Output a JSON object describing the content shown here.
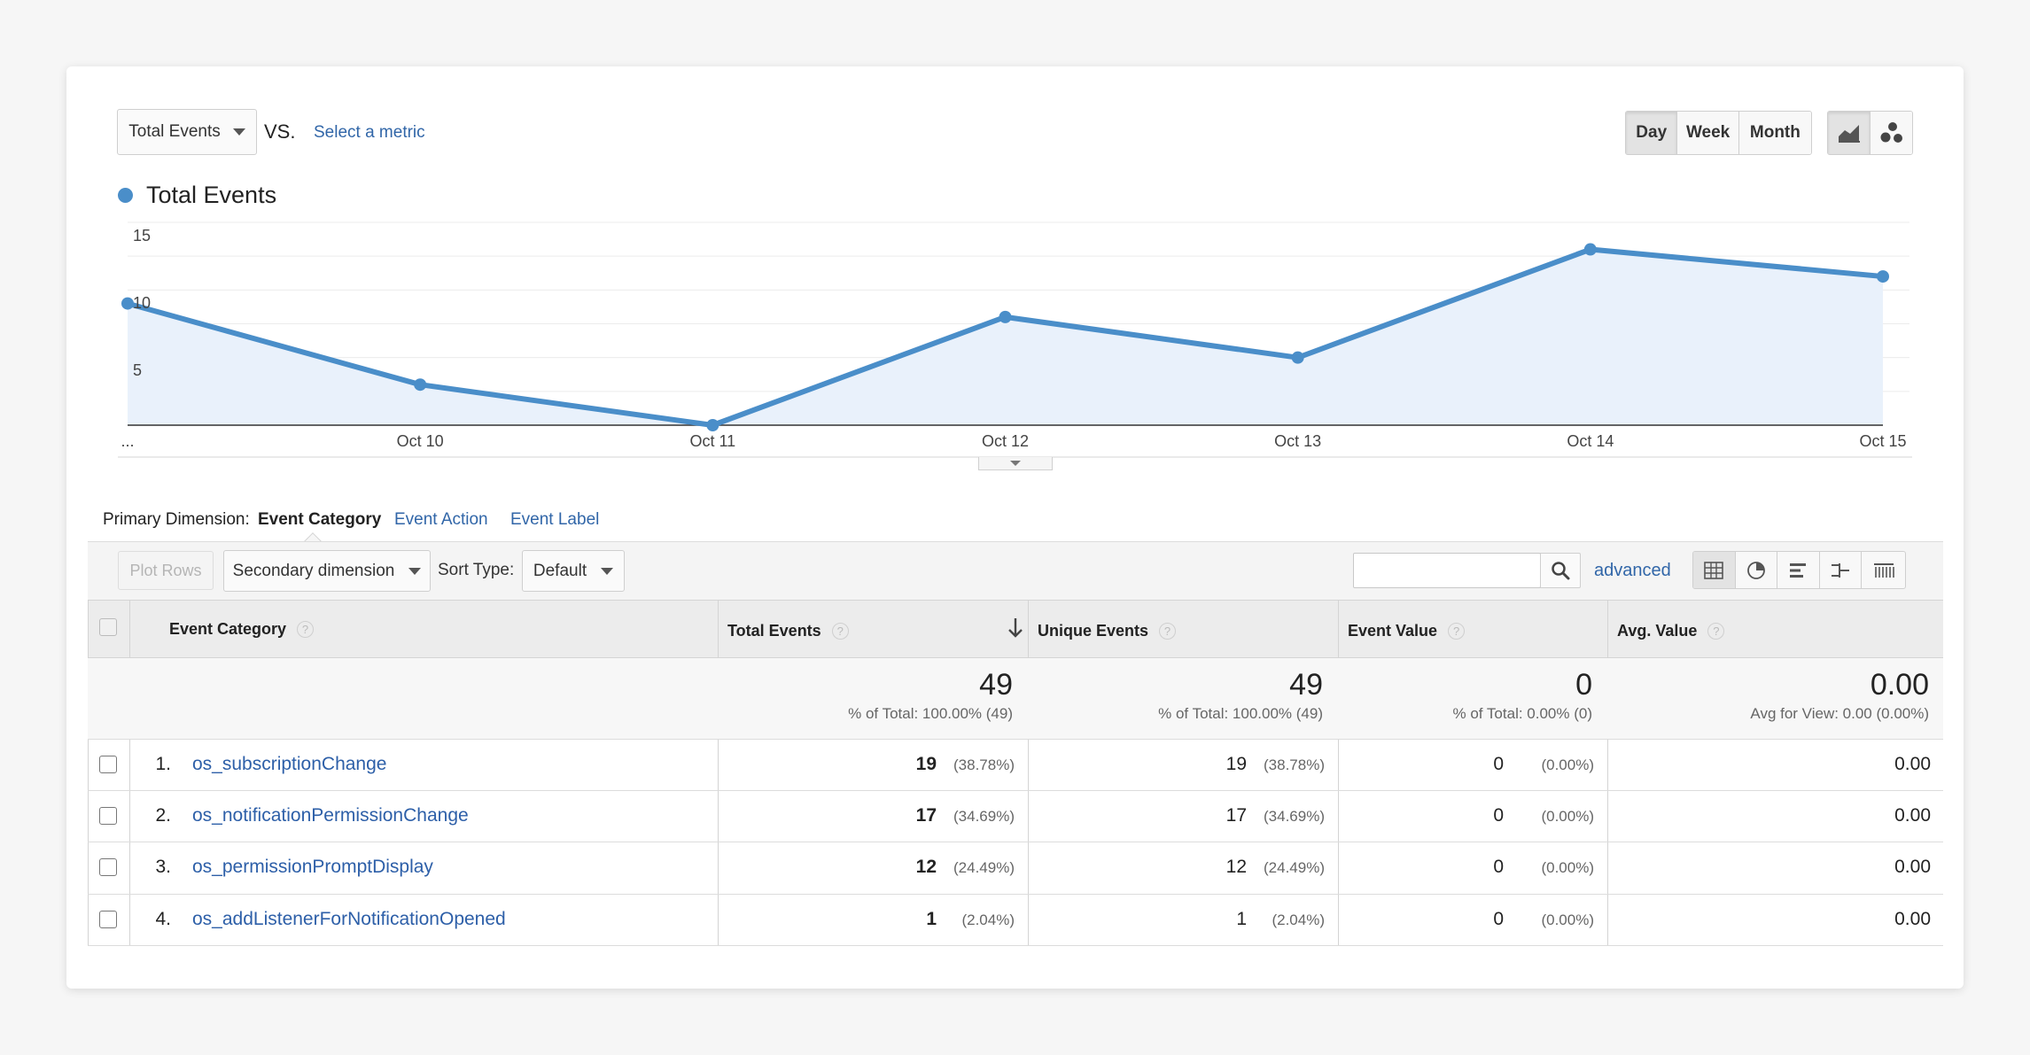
{
  "metric_selector": {
    "value": "Total Events",
    "vs_label": "VS.",
    "select_metric_label": "Select a metric"
  },
  "period_buttons": [
    "Day",
    "Week",
    "Month"
  ],
  "legend": {
    "label": "Total Events",
    "color": "#4a8ec9"
  },
  "chart_data": {
    "type": "line",
    "x": [
      "...",
      "Oct 10",
      "Oct 11",
      "Oct 12",
      "Oct 13",
      "Oct 14",
      "Oct 15"
    ],
    "series": [
      {
        "name": "Total Events",
        "values": [
          9,
          3,
          0,
          8,
          5,
          13,
          11
        ]
      }
    ],
    "ylim": [
      0,
      15
    ],
    "yticks": [
      5,
      10,
      15
    ],
    "title": "",
    "xlabel": "",
    "ylabel": ""
  },
  "primary_dimension": {
    "label": "Primary Dimension:",
    "active": "Event Category",
    "options": [
      "Event Action",
      "Event Label"
    ]
  },
  "toolbar": {
    "plot_rows": "Plot Rows",
    "secondary_dimension": "Secondary dimension",
    "sort_type_label": "Sort Type:",
    "sort_type_value": "Default",
    "search_placeholder": "",
    "advanced": "advanced"
  },
  "table": {
    "headers": {
      "category": "Event Category",
      "total": "Total Events",
      "unique": "Unique Events",
      "value": "Event Value",
      "avg": "Avg. Value"
    },
    "totals": {
      "total": "49",
      "total_sub": "% of Total: 100.00% (49)",
      "unique": "49",
      "unique_sub": "% of Total: 100.00% (49)",
      "value": "0",
      "value_sub": "% of Total: 0.00% (0)",
      "avg": "0.00",
      "avg_sub": "Avg for View: 0.00 (0.00%)"
    },
    "rows": [
      {
        "num": "1.",
        "name": "os_subscriptionChange",
        "total": "19",
        "total_pct": "(38.78%)",
        "unique": "19",
        "unique_pct": "(38.78%)",
        "value": "0",
        "value_pct": "(0.00%)",
        "avg": "0.00"
      },
      {
        "num": "2.",
        "name": "os_notificationPermissionChange",
        "total": "17",
        "total_pct": "(34.69%)",
        "unique": "17",
        "unique_pct": "(34.69%)",
        "value": "0",
        "value_pct": "(0.00%)",
        "avg": "0.00"
      },
      {
        "num": "3.",
        "name": "os_permissionPromptDisplay",
        "total": "12",
        "total_pct": "(24.49%)",
        "unique": "12",
        "unique_pct": "(24.49%)",
        "value": "0",
        "value_pct": "(0.00%)",
        "avg": "0.00"
      },
      {
        "num": "4.",
        "name": "os_addListenerForNotificationOpened",
        "total": "1",
        "total_pct": "(2.04%)",
        "unique": "1",
        "unique_pct": "(2.04%)",
        "value": "0",
        "value_pct": "(0.00%)",
        "avg": "0.00"
      }
    ]
  }
}
